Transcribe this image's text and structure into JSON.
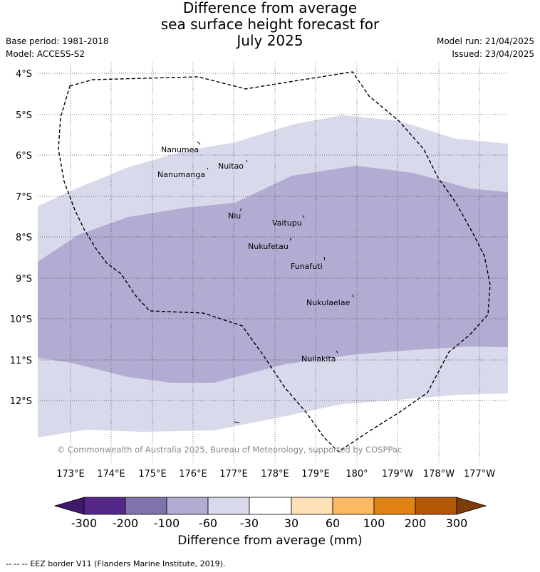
{
  "title": "Difference from average\nsea surface height forecast for\nJuly 2025",
  "meta": {
    "base_period": "Base period: 1981-2018",
    "model": "Model: ACCESS-S2",
    "model_run": "Model run: 21/04/2025",
    "issued": "Issued: 23/04/2025"
  },
  "map": {
    "latitude_labels": [
      "4°S",
      "5°S",
      "6°S",
      "7°S",
      "8°S",
      "9°S",
      "10°S",
      "11°S",
      "12°S"
    ],
    "longitude_labels": [
      "173°E",
      "174°E",
      "175°E",
      "176°E",
      "177°E",
      "178°E",
      "179°E",
      "180°",
      "179°W",
      "178°W",
      "177°W"
    ],
    "places": [
      {
        "name": "Nanumea"
      },
      {
        "name": "Nuitao"
      },
      {
        "name": "Nanumanga"
      },
      {
        "name": "Niu"
      },
      {
        "name": "Vaitupu"
      },
      {
        "name": "Nukufetau"
      },
      {
        "name": "Funafuti"
      },
      {
        "name": "Nukulaelae"
      },
      {
        "name": "Nuilakita"
      }
    ],
    "copyright": "© Commonwealth of Australia 2025, Bureau of Meteorology, supported by COSPPac"
  },
  "legend": {
    "ticks": [
      "-300",
      "-200",
      "-100",
      "-60",
      "-30",
      "30",
      "60",
      "100",
      "200",
      "300"
    ],
    "colors": [
      "#3f1a6b",
      "#542788",
      "#8073ac",
      "#b2abd2",
      "#d8daeb",
      "#ffffff",
      "#fee0b6",
      "#fdb863",
      "#e08214",
      "#b35806",
      "#7f3b08"
    ],
    "title": "Difference from average (mm)"
  },
  "eez_note": "--  --  -- EEZ border V11 (Flanders Marine Institute, 2019)."
}
